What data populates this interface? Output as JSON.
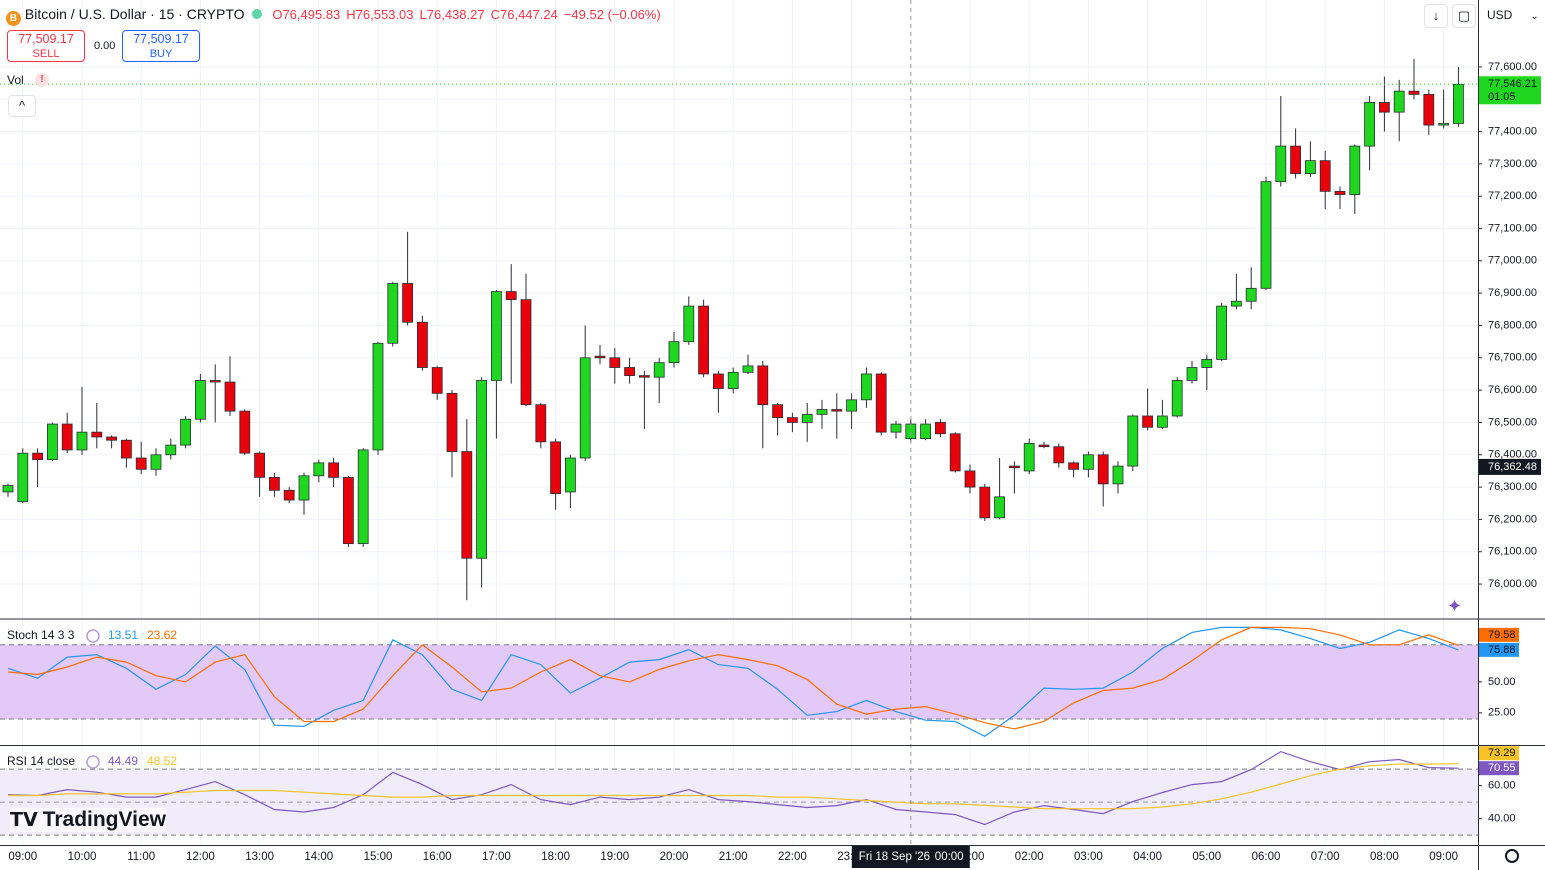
{
  "header": {
    "title": "Bitcoin / U.S. Dollar · 15 · CRYPTO",
    "ohlc": [
      "O76,495.83",
      "H76,553.03",
      "L76,438.27",
      "C76,447.24",
      "−49.52 (−0.06%)"
    ],
    "currency": "USD"
  },
  "trade": {
    "sell_price": "77,509.17",
    "sell": "SELL",
    "spread": "0.00",
    "buy_price": "77,509.17",
    "buy": "BUY"
  },
  "vol_label": "Vol",
  "brand": "TradingView",
  "chart_data": [
    {
      "type": "candlestick",
      "up_color": "#1fd71f",
      "down_color": "#e8000b",
      "wick_color": "#2a2e39",
      "ylim": [
        75895,
        77807
      ],
      "yticks": [
        {
          "value": 76000,
          "label": "76,000.00"
        },
        {
          "value": 76100,
          "label": "76,100.00"
        },
        {
          "value": 76200,
          "label": "76,200.00"
        },
        {
          "value": 76300,
          "label": "76,300.00"
        },
        {
          "value": 76400,
          "label": "76,400.00"
        },
        {
          "value": 76500,
          "label": "76,500.00"
        },
        {
          "value": 76600,
          "label": "76,600.00"
        },
        {
          "value": 76700,
          "label": "76,700.00"
        },
        {
          "value": 76800,
          "label": "76,800.00"
        },
        {
          "value": 76900,
          "label": "76,900.00"
        },
        {
          "value": 77000,
          "label": "77,000.00"
        },
        {
          "value": 77100,
          "label": "77,100.00"
        },
        {
          "value": 77200,
          "label": "77,200.00"
        },
        {
          "value": 77300,
          "label": "77,300.00"
        },
        {
          "value": 77400,
          "label": "77,400.00"
        },
        {
          "value": 77500,
          "label": "77,500.00"
        },
        {
          "value": 77600,
          "label": "77,600.00"
        }
      ],
      "xticks": [
        {
          "value": 1,
          "label": "09:00"
        },
        {
          "value": 5,
          "label": "10:00"
        },
        {
          "value": 9,
          "label": "11:00"
        },
        {
          "value": 13,
          "label": "12:00"
        },
        {
          "value": 17,
          "label": "13:00"
        },
        {
          "value": 21,
          "label": "14:00"
        },
        {
          "value": 25,
          "label": "15:00"
        },
        {
          "value": 29,
          "label": "16:00"
        },
        {
          "value": 33,
          "label": "17:00"
        },
        {
          "value": 37,
          "label": "18:00"
        },
        {
          "value": 41,
          "label": "19:00"
        },
        {
          "value": 45,
          "label": "20:00"
        },
        {
          "value": 49,
          "label": "21:00"
        },
        {
          "value": 53,
          "label": "22:00"
        },
        {
          "value": 57,
          "label": "23:00"
        },
        {
          "value": 65,
          "label": "01:00"
        },
        {
          "value": 69,
          "label": "02:00"
        },
        {
          "value": 73,
          "label": "03:00"
        },
        {
          "value": 77,
          "label": "04:00"
        },
        {
          "value": 81,
          "label": "05:00"
        },
        {
          "value": 85,
          "label": "06:00"
        },
        {
          "value": 89,
          "label": "07:00"
        },
        {
          "value": 93,
          "label": "08:00"
        },
        {
          "value": 97,
          "label": "09:00"
        }
      ],
      "grid": true,
      "open": [
        76285,
        76255,
        76405,
        76385,
        76495,
        76415,
        76470,
        76455,
        76445,
        76390,
        76355,
        76400,
        76430,
        76510,
        76630,
        76625,
        76535,
        76405,
        76330,
        76290,
        76260,
        76335,
        76375,
        76330,
        76125,
        76415,
        76745,
        76930,
        76810,
        76670,
        76590,
        76410,
        76080,
        76630,
        76905,
        76880,
        76555,
        76440,
        76285,
        76390,
        76705,
        76700,
        76670,
        76645,
        76640,
        76685,
        76750,
        76860,
        76650,
        76605,
        76655,
        76675,
        76555,
        76515,
        76500,
        76525,
        76540,
        76535,
        76570,
        76650,
        76470,
        76450,
        76450,
        76500,
        76465,
        76350,
        76300,
        76205,
        76365,
        76350,
        76430,
        76425,
        76375,
        76355,
        76400,
        76310,
        76365,
        76520,
        76485,
        76520,
        76630,
        76670,
        76695,
        76860,
        76875,
        76915,
        77245,
        77355,
        77270,
        77310,
        77215,
        77205,
        77355,
        77490,
        77460,
        77525,
        77515,
        77420,
        77425
      ],
      "high": [
        76310,
        76420,
        76420,
        76500,
        76530,
        76610,
        76560,
        76460,
        76450,
        76440,
        76420,
        76450,
        76520,
        76650,
        76680,
        76705,
        76540,
        76410,
        76345,
        76300,
        76345,
        76385,
        76390,
        76335,
        76420,
        76750,
        76935,
        77090,
        76830,
        76675,
        76600,
        76510,
        76640,
        76910,
        76990,
        76960,
        76560,
        76450,
        76400,
        76800,
        76740,
        76730,
        76700,
        76660,
        76700,
        76780,
        76890,
        76880,
        76660,
        76670,
        76710,
        76690,
        76560,
        76530,
        76560,
        76570,
        76590,
        76590,
        76670,
        76655,
        76505,
        76510,
        76510,
        76510,
        76470,
        76370,
        76310,
        76390,
        76380,
        76450,
        76440,
        76435,
        76380,
        76410,
        76410,
        76380,
        76525,
        76605,
        76570,
        76640,
        76690,
        76710,
        76870,
        76960,
        76980,
        77260,
        77510,
        77410,
        77370,
        77340,
        77230,
        77360,
        77510,
        77570,
        77560,
        77625,
        77530,
        77530,
        77600
      ],
      "low": [
        76270,
        76250,
        76300,
        76380,
        76405,
        76400,
        76420,
        76420,
        76360,
        76340,
        76335,
        76385,
        76420,
        76500,
        76500,
        76520,
        76400,
        76270,
        76270,
        76250,
        76215,
        76315,
        76300,
        76115,
        76115,
        76400,
        76735,
        76800,
        76660,
        76570,
        76330,
        75950,
        75990,
        76450,
        76620,
        76550,
        76420,
        76230,
        76235,
        76380,
        76680,
        76620,
        76620,
        76480,
        76560,
        76670,
        76740,
        76640,
        76530,
        76590,
        76650,
        76420,
        76460,
        76470,
        76440,
        76480,
        76450,
        76480,
        76545,
        76460,
        76450,
        76440,
        76445,
        76455,
        76345,
        76280,
        76195,
        76200,
        76280,
        76340,
        76420,
        76360,
        76330,
        76330,
        76240,
        76280,
        76350,
        76475,
        76480,
        76515,
        76620,
        76600,
        76690,
        76850,
        76850,
        76910,
        77230,
        77255,
        77260,
        77160,
        77160,
        77145,
        77280,
        77400,
        77370,
        77500,
        77390,
        77410,
        77415
      ],
      "close": [
        76305,
        76405,
        76385,
        76495,
        76415,
        76470,
        76455,
        76445,
        76390,
        76355,
        76400,
        76430,
        76510,
        76630,
        76625,
        76535,
        76405,
        76330,
        76290,
        76260,
        76335,
        76375,
        76330,
        76125,
        76415,
        76745,
        76930,
        76810,
        76670,
        76590,
        76410,
        76080,
        76630,
        76905,
        76880,
        76555,
        76440,
        76280,
        76390,
        76700,
        76700,
        76670,
        76645,
        76640,
        76685,
        76750,
        76860,
        76650,
        76605,
        76655,
        76675,
        76555,
        76515,
        76500,
        76525,
        76540,
        76535,
        76570,
        76650,
        76470,
        76495,
        76495,
        76495,
        76465,
        76350,
        76300,
        76205,
        76270,
        76360,
        76435,
        76425,
        76375,
        76355,
        76400,
        76310,
        76365,
        76520,
        76485,
        76520,
        76630,
        76670,
        76695,
        76860,
        76875,
        76915,
        77245,
        77355,
        77270,
        77310,
        77215,
        77205,
        77355,
        77490,
        77460,
        77525,
        77515,
        77420,
        77425,
        77546.21
      ],
      "last_price_label": "77,546.21",
      "last_price_color": "#1fd71f",
      "countdown": "01:05",
      "crosshair": {
        "index": 61,
        "price": 76362.48,
        "price_label": "76,362.48",
        "date": "Fri 18 Sep '26",
        "time": "00:00"
      }
    },
    {
      "type": "line",
      "title": "Stoch 14 3 3",
      "ylim": [
        -1,
        100
      ],
      "yticks": [
        {
          "value": 25,
          "label": "25.00"
        },
        {
          "value": 50,
          "label": "50.00"
        }
      ],
      "band": [
        20,
        80
      ],
      "band_color": "#e3c9f7",
      "x": [
        0,
        2,
        4,
        6,
        8,
        10,
        12,
        14,
        16,
        18,
        20,
        22,
        24,
        26,
        28,
        30,
        32,
        34,
        36,
        38,
        40,
        42,
        44,
        46,
        48,
        50,
        52,
        54,
        56,
        58,
        60,
        62,
        64,
        66,
        68,
        70,
        72,
        74,
        76,
        78,
        80,
        82,
        84,
        86,
        88,
        90,
        92,
        94,
        96,
        98
      ],
      "series": [
        {
          "color": "#2196f3",
          "legend_value": 13.51,
          "values": [
            61,
            53,
            70,
            72,
            61,
            44,
            56,
            79,
            60,
            15,
            14,
            27,
            35,
            84,
            72,
            44,
            35,
            72,
            64,
            41,
            53,
            66,
            68,
            76,
            64,
            61,
            44,
            23,
            26,
            35,
            26,
            19,
            18,
            6,
            23,
            45,
            44,
            45,
            58,
            77,
            90,
            94,
            94,
            92,
            85,
            77,
            82,
            92,
            85,
            75.88
          ]
        },
        {
          "color": "#ff6d00",
          "legend_value": 23.62,
          "values": [
            58,
            56,
            62,
            70,
            66,
            55,
            50,
            66,
            72,
            38,
            18,
            18,
            28,
            55,
            80,
            62,
            42,
            45,
            58,
            68,
            55,
            50,
            60,
            67,
            72,
            68,
            63,
            52,
            32,
            24,
            28,
            30,
            24,
            17,
            12,
            18,
            33,
            43,
            45,
            52,
            67,
            84,
            94,
            94,
            93,
            88,
            80,
            80,
            88,
            79.58
          ]
        }
      ]
    },
    {
      "type": "line",
      "title": "RSI 14 close",
      "ylim": [
        24,
        84
      ],
      "yticks": [
        {
          "value": 40,
          "label": "40.00"
        },
        {
          "value": 60,
          "label": "60.00"
        }
      ],
      "band": [
        30,
        70
      ],
      "midline": 50,
      "band_color": "#f1ecf9",
      "x": [
        0,
        2,
        4,
        6,
        8,
        10,
        12,
        14,
        16,
        18,
        20,
        22,
        24,
        26,
        28,
        30,
        32,
        34,
        36,
        38,
        40,
        42,
        44,
        46,
        48,
        50,
        52,
        54,
        56,
        58,
        60,
        62,
        64,
        66,
        68,
        70,
        72,
        74,
        76,
        78,
        80,
        82,
        84,
        86,
        88,
        90,
        92,
        94,
        96,
        98
      ],
      "series": [
        {
          "color": "#7e57c2",
          "legend_value": 44.49,
          "values": [
            54.5,
            54,
            57.6,
            56,
            53,
            53,
            57.6,
            62.4,
            54.5,
            45.5,
            44,
            46.7,
            54.5,
            68,
            60.6,
            51.5,
            54.5,
            60.6,
            51.5,
            48.5,
            53,
            51.5,
            53,
            57.6,
            51.5,
            50.3,
            48.5,
            46.7,
            47.9,
            51.5,
            45.5,
            44,
            42.4,
            36.4,
            44,
            47.9,
            45.5,
            43,
            50.3,
            55.8,
            60.6,
            62.4,
            69.7,
            80.6,
            74.5,
            69.7,
            74.5,
            75.8,
            70.9,
            70.55
          ]
        },
        {
          "color": "#f7c325",
          "legend_value": 48.52,
          "values": [
            54,
            54,
            55,
            55,
            55,
            55,
            56,
            57,
            57,
            57,
            56,
            55,
            54,
            53,
            53,
            54,
            54,
            54,
            54,
            54,
            54,
            54,
            54,
            54,
            54,
            54,
            53,
            53,
            52,
            51,
            50,
            49,
            49,
            48,
            47,
            46,
            46,
            46,
            46,
            47,
            49,
            52,
            56,
            61,
            66,
            70,
            72,
            73,
            73,
            73.29
          ]
        }
      ]
    }
  ]
}
